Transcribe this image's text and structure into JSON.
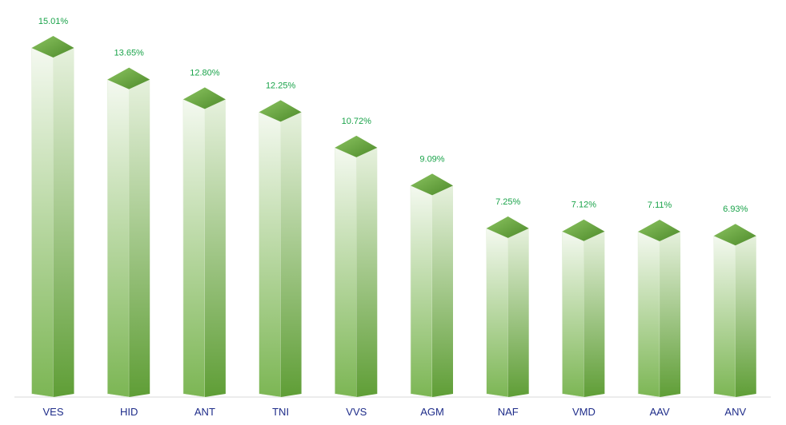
{
  "chart_data": {
    "type": "bar",
    "title": "",
    "xlabel": "",
    "ylabel": "",
    "categories": [
      "VES",
      "HID",
      "ANT",
      "TNI",
      "VVS",
      "AGM",
      "NAF",
      "VMD",
      "AAV",
      "ANV"
    ],
    "values": [
      15.01,
      13.65,
      12.8,
      12.25,
      10.72,
      9.09,
      7.25,
      7.12,
      7.11,
      6.93
    ],
    "value_labels": [
      "15.01%",
      "13.65%",
      "12.80%",
      "12.25%",
      "10.72%",
      "9.09%",
      "7.25%",
      "7.12%",
      "7.11%",
      "6.93%"
    ],
    "ylim": [
      0,
      16
    ],
    "grid": false,
    "legend": "none",
    "style": "3d-column-green-gradient"
  },
  "colors": {
    "bar_top": "#6aab40",
    "bar_side_dark": "#5f9e36",
    "bar_front_light": "#f2f8ee",
    "value_label": "#1aa34a",
    "category_label": "#1f2d8a",
    "axis_line": "#d9d9d9"
  }
}
